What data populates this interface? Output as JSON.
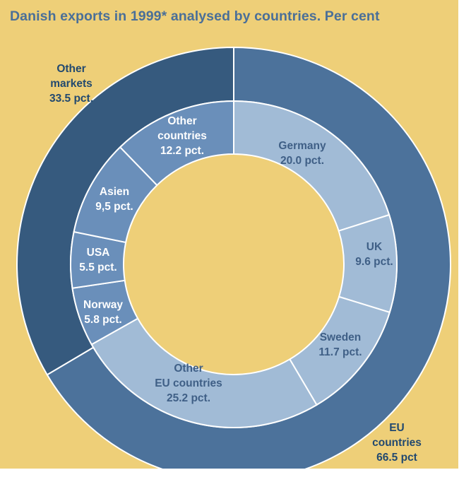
{
  "title": "Danish exports in 1999* analysed by countries. Per cent",
  "colors": {
    "background": "#eecf78",
    "title": "#4a6f98",
    "eu_outer": "#4c729b",
    "other_outer": "#365a7e",
    "eu_inner": "#a1bbd6",
    "other_inner": "#6a8fba",
    "separator": "#ffffff"
  },
  "chart_data": {
    "type": "pie",
    "subtype": "nested-donut",
    "title": "Danish exports in 1999* analysed by countries. Per cent",
    "outer_ring": [
      {
        "name": "EU countries",
        "value": 66.5,
        "label_lines": [
          "EU",
          "countries",
          "66.5 pct"
        ]
      },
      {
        "name": "Other markets",
        "value": 33.5,
        "label_lines": [
          "Other",
          "markets",
          "33.5 pct."
        ]
      }
    ],
    "inner_ring": [
      {
        "name": "Germany",
        "value": 20.0,
        "group": "EU countries",
        "label_lines": [
          "Germany",
          "20.0 pct."
        ]
      },
      {
        "name": "UK",
        "value": 9.6,
        "group": "EU countries",
        "label_lines": [
          "UK",
          "9.6 pct."
        ]
      },
      {
        "name": "Sweden",
        "value": 11.7,
        "group": "EU countries",
        "label_lines": [
          "Sweden",
          "11.7 pct."
        ]
      },
      {
        "name": "Other EU countries",
        "value": 25.2,
        "group": "EU countries",
        "label_lines": [
          "Other",
          "EU countries",
          "25.2 pct."
        ]
      },
      {
        "name": "Norway",
        "value": 5.8,
        "group": "Other markets",
        "label_lines": [
          "Norway",
          "5.8 pct."
        ]
      },
      {
        "name": "USA",
        "value": 5.5,
        "group": "Other markets",
        "label_lines": [
          "USA",
          "5.5 pct."
        ]
      },
      {
        "name": "Asien",
        "value": 9.5,
        "group": "Other markets",
        "label_lines": [
          "Asien",
          "9,5 pct."
        ]
      },
      {
        "name": "Other countries",
        "value": 12.2,
        "group": "Other markets",
        "label_lines": [
          "Other",
          "countries",
          "12.2 pct."
        ]
      }
    ]
  }
}
